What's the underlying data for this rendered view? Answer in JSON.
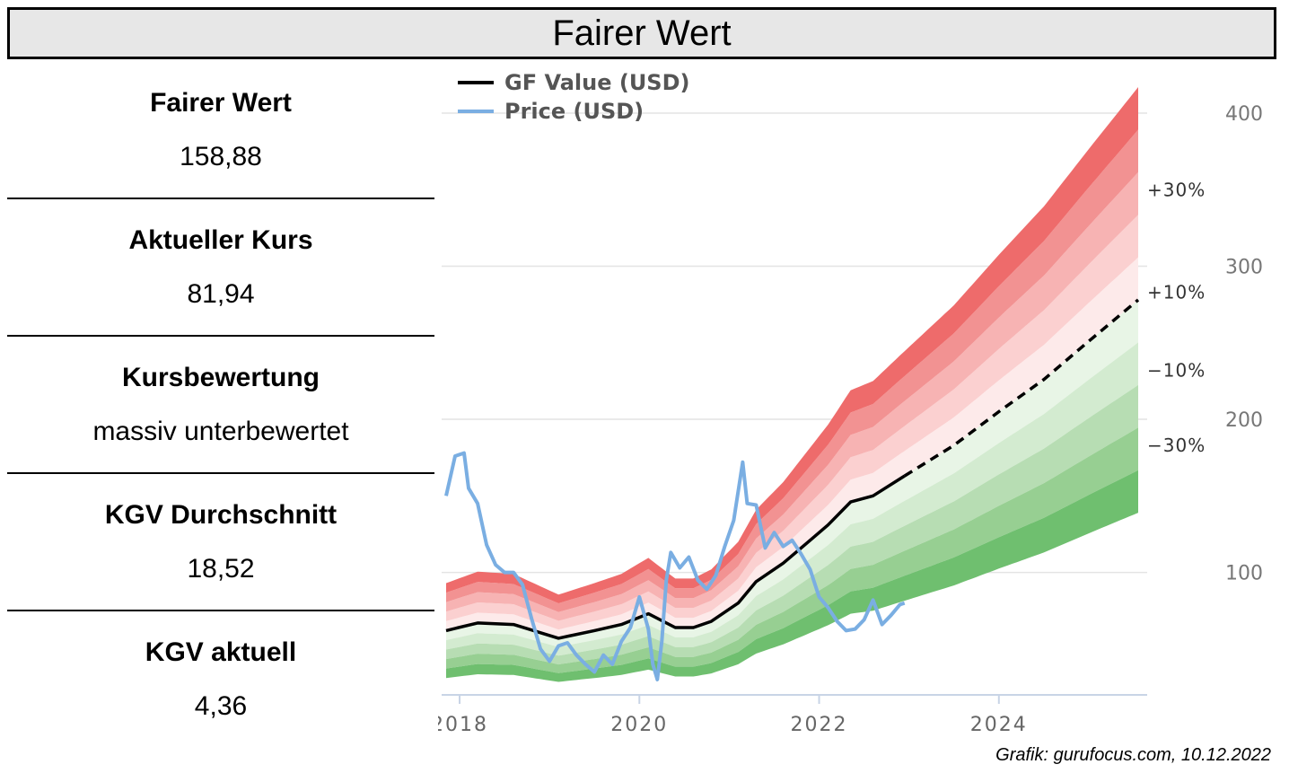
{
  "title": "Fairer Wert",
  "metrics": [
    {
      "label": "Fairer Wert",
      "value": "158,88"
    },
    {
      "label": "Aktueller Kurs",
      "value": "81,94"
    },
    {
      "label": "Kursbewertung",
      "value": "massiv unterbewertet"
    },
    {
      "label": "KGV Durchschnitt",
      "value": "18,52"
    },
    {
      "label": "KGV aktuell",
      "value": "4,36"
    }
  ],
  "credit": "Grafik: gurufocus.com, 10.12.2022",
  "chart_data": {
    "type": "line",
    "title": "",
    "legend": [
      "GF Value (USD)",
      "Price (USD)"
    ],
    "legend_position": "top-left",
    "xlim": [
      2017.8,
      2025.65
    ],
    "ylim": [
      20,
      400
    ],
    "y_axis_side": "right",
    "x_ticks": [
      "2018",
      "2020",
      "2022",
      "2024"
    ],
    "y_ticks": [
      "100",
      "200",
      "300",
      "400"
    ],
    "band_labels": [
      "+30%",
      "+10%",
      "−10%",
      "−30%"
    ],
    "grid": true,
    "colors": {
      "gf_value": "#000000",
      "price": "#7aaee2",
      "over_band": "#ee6b6b",
      "under_band": "#6fbf6f"
    },
    "gf_value": {
      "x": [
        2017.85,
        2018.2,
        2018.6,
        2019.1,
        2019.5,
        2019.8,
        2020.1,
        2020.4,
        2020.6,
        2020.8,
        2021.1,
        2021.3,
        2021.6,
        2021.9,
        2022.1,
        2022.35,
        2022.6,
        2022.95
      ],
      "y": [
        62,
        67,
        66,
        57,
        62,
        66,
        73,
        64,
        64,
        68,
        80,
        94,
        106,
        121,
        131,
        146,
        150,
        163
      ]
    },
    "gf_value_projection": {
      "x": [
        2022.95,
        2023.5,
        2024.0,
        2024.5,
        2025.0,
        2025.55
      ],
      "y": [
        163,
        183,
        205,
        226,
        251,
        278
      ]
    },
    "price": {
      "x": [
        2017.85,
        2017.95,
        2018.05,
        2018.1,
        2018.2,
        2018.3,
        2018.4,
        2018.5,
        2018.6,
        2018.7,
        2018.8,
        2018.9,
        2019.0,
        2019.1,
        2019.2,
        2019.3,
        2019.4,
        2019.5,
        2019.6,
        2019.7,
        2019.8,
        2019.9,
        2020.0,
        2020.1,
        2020.15,
        2020.2,
        2020.25,
        2020.3,
        2020.35,
        2020.45,
        2020.55,
        2020.65,
        2020.75,
        2020.85,
        2020.95,
        2021.05,
        2021.15,
        2021.2,
        2021.3,
        2021.4,
        2021.5,
        2021.6,
        2021.7,
        2021.8,
        2021.9,
        2022.0,
        2022.1,
        2022.2,
        2022.3,
        2022.4,
        2022.5,
        2022.6,
        2022.7,
        2022.8,
        2022.9,
        2022.95
      ],
      "y": [
        150,
        176,
        178,
        155,
        145,
        118,
        105,
        100,
        100,
        92,
        70,
        50,
        42,
        52,
        54,
        46,
        40,
        35,
        46,
        40,
        55,
        64,
        84,
        63,
        40,
        30,
        55,
        95,
        113,
        103,
        110,
        95,
        89,
        98,
        117,
        134,
        172,
        145,
        144,
        116,
        126,
        117,
        121,
        112,
        102,
        84,
        77,
        68,
        62,
        63,
        69,
        82,
        66,
        72,
        79,
        80
      ]
    }
  }
}
